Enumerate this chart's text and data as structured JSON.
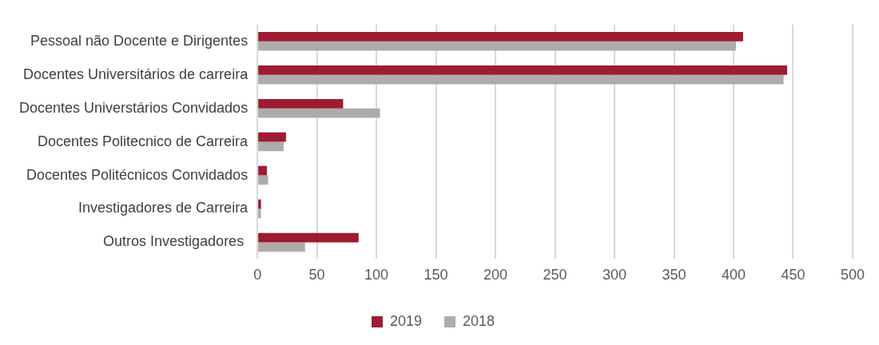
{
  "chart_data": {
    "type": "bar",
    "orientation": "horizontal",
    "categories": [
      "Pessoal não Docente e Dirigentes",
      "Docentes Universitários de carreira",
      "Docentes Universtários Convidados",
      "Docentes Politecnico de Carreira",
      "Docentes Politécnicos Convidados",
      "Investigadores de Carreira",
      "Outros Investigadores "
    ],
    "series": [
      {
        "name": "2019",
        "color": "#9e1b32",
        "values": [
          408,
          445,
          72,
          24,
          8,
          3,
          85
        ]
      },
      {
        "name": "2018",
        "color": "#afabab",
        "values": [
          402,
          442,
          103,
          22,
          9,
          3,
          40
        ]
      }
    ],
    "xlim": [
      0,
      500
    ],
    "xticks": [
      0,
      50,
      100,
      150,
      200,
      250,
      300,
      350,
      400,
      450,
      500
    ],
    "grid": "x",
    "legend": "bottom"
  }
}
